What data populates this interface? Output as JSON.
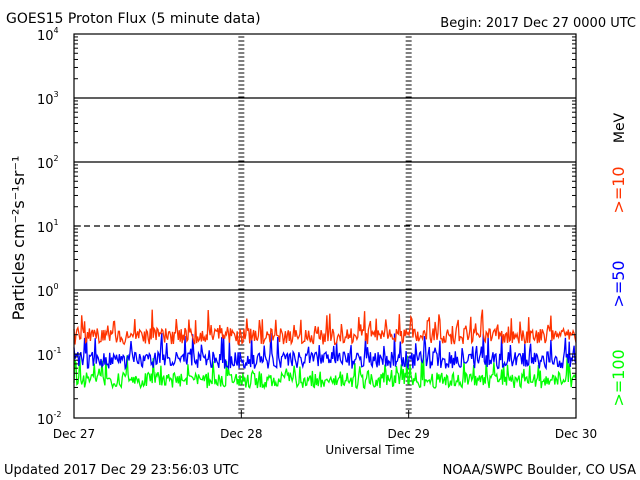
{
  "header": {
    "title": "GOES15 Proton Flux (5 minute data)",
    "begin": "Begin: 2017 Dec 27 0000 UTC"
  },
  "footer": {
    "updated": "Updated 2017 Dec 29 23:56:03 UTC",
    "source": "NOAA/SWPC Boulder, CO USA"
  },
  "colors": {
    "ge10": "#ff3300",
    "ge50": "#0000ff",
    "ge100": "#00ff00",
    "axes": "#000000"
  },
  "chart_data": {
    "type": "line",
    "title": "GOES15 Proton Flux (5 minute data)",
    "xlabel": "Universal Time",
    "ylabel": "Particles cm⁻²s⁻¹sr⁻¹",
    "yscale": "log",
    "ylim": [
      0.01,
      10000
    ],
    "ytick_labels": [
      {
        "base": "10",
        "exp": "-2"
      },
      {
        "base": "10",
        "exp": "-1"
      },
      {
        "base": "10",
        "exp": "0"
      },
      {
        "base": "10",
        "exp": "1"
      },
      {
        "base": "10",
        "exp": "2"
      },
      {
        "base": "10",
        "exp": "3"
      },
      {
        "base": "10",
        "exp": "4"
      }
    ],
    "xlim": [
      "2017-12-27T00:00",
      "2017-12-30T00:00"
    ],
    "xtick_labels": [
      "Dec 27",
      "Dec 28",
      "Dec 29",
      "Dec 30"
    ],
    "horizontal_lines": [
      {
        "y": 1,
        "style": "solid"
      },
      {
        "y": 10,
        "style": "dashed"
      },
      {
        "y": 100,
        "style": "solid"
      },
      {
        "y": 1000,
        "style": "solid"
      }
    ],
    "unit_label": "MeV",
    "series": [
      {
        "name": ">=10",
        "color": "#ff3300",
        "typical_range": [
          0.12,
          0.35
        ]
      },
      {
        "name": ">=50",
        "color": "#0000ff",
        "typical_range": [
          0.05,
          0.15
        ]
      },
      {
        "name": ">=100",
        "color": "#00ff00",
        "typical_range": [
          0.025,
          0.07
        ]
      }
    ]
  }
}
